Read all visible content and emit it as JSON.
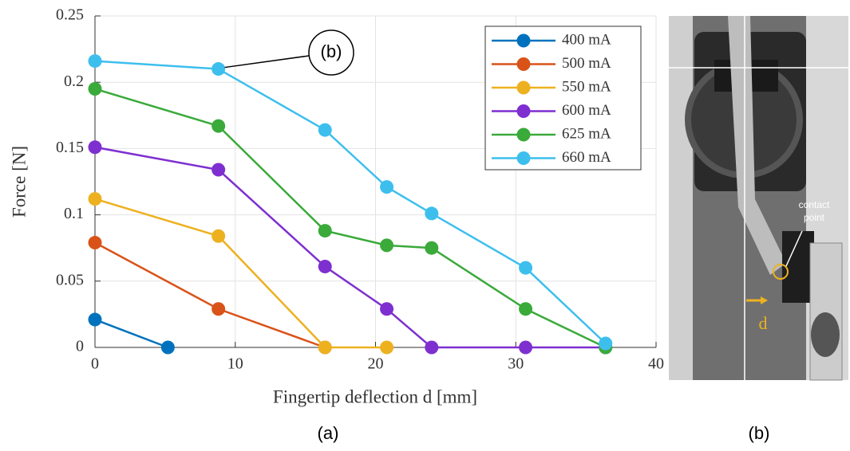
{
  "chart_data": {
    "type": "line",
    "xlabel": "Fingertip deflection d [mm]",
    "ylabel": "Force [N]",
    "xlim": [
      0,
      40
    ],
    "ylim": [
      0,
      0.25
    ],
    "xticks": [
      0,
      10,
      20,
      30,
      40
    ],
    "yticks": [
      0,
      0.05,
      0.1,
      0.15,
      0.2,
      0.25
    ],
    "grid": true,
    "legend": "upper right",
    "annotation": "(b)",
    "series": [
      {
        "name": "400 mA",
        "color": "#0072bd",
        "x": [
          0,
          5.2
        ],
        "values": [
          0.021,
          0
        ]
      },
      {
        "name": "500 mA",
        "color": "#d95319",
        "x": [
          0,
          8.8,
          16.4
        ],
        "values": [
          0.079,
          0.029,
          0
        ]
      },
      {
        "name": "550 mA",
        "color": "#edb120",
        "x": [
          0,
          8.8,
          16.4,
          20.8
        ],
        "values": [
          0.112,
          0.084,
          0,
          0
        ]
      },
      {
        "name": "600 mA",
        "color": "#7e2fd0",
        "x": [
          0,
          8.8,
          16.4,
          20.8,
          24,
          30.7,
          36.4
        ],
        "values": [
          0.151,
          0.134,
          0.061,
          0.029,
          0,
          0,
          0
        ]
      },
      {
        "name": "625 mA",
        "color": "#3aaa3a",
        "x": [
          0,
          8.8,
          16.4,
          20.8,
          24,
          30.7,
          36.4
        ],
        "values": [
          0.195,
          0.167,
          0.088,
          0.077,
          0.075,
          0.029,
          0
        ]
      },
      {
        "name": "660 mA",
        "color": "#3dbfee",
        "x": [
          0,
          8.8,
          16.4,
          20.8,
          24,
          30.7,
          36.4
        ],
        "values": [
          0.216,
          0.21,
          0.164,
          0.121,
          0.101,
          0.06,
          0.003
        ]
      }
    ]
  },
  "captions": {
    "left": "(a)",
    "right": "(b)"
  },
  "photo": {
    "contact_label_1": "contact",
    "contact_label_2": "point",
    "d_label": "d"
  }
}
